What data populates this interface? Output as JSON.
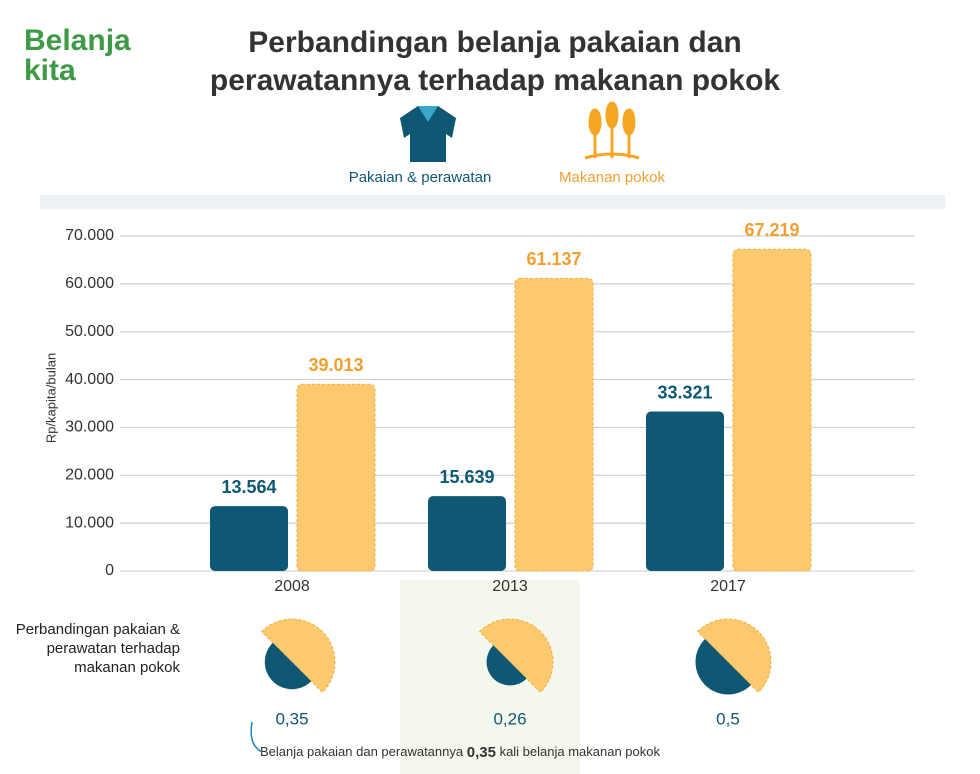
{
  "logo": "Belanja kita",
  "chart_data": {
    "type": "bar",
    "title": "Perbandingan belanja pakaian dan perawatannya terhadap makanan pokok",
    "y_label": "Rp/kapita/bulan",
    "categories": [
      "2008",
      "2013",
      "2017"
    ],
    "series": [
      {
        "name": "Pakaian & perawatan",
        "color": "#0e5874",
        "label_color": "#0e5874",
        "values": [
          13564,
          15639,
          33321
        ],
        "value_labels": [
          "13.564",
          "15.639",
          "33.321"
        ]
      },
      {
        "name": "Makanan pokok",
        "color": "#fcc96e",
        "label_color": "#f0a030",
        "values": [
          39013,
          61137,
          67219
        ],
        "value_labels": [
          "39.013",
          "61.137",
          "67.219"
        ]
      }
    ],
    "ylim": [
      0,
      70000
    ],
    "yticks": [
      0,
      {
        "value": 10000,
        "label": "10.000"
      },
      {
        "value": 20000,
        "label": "20.000"
      },
      {
        "value": 30000,
        "label": "30.000"
      },
      {
        "value": 40000,
        "label": "40.000"
      },
      {
        "value": 50000,
        "label": "50.000"
      },
      {
        "value": 60000,
        "label": "60.000"
      },
      {
        "value": 70000,
        "label": "70.000"
      }
    ],
    "grid": true,
    "ratio_title": "Perbandingan pakaian & perawatan terhadap makanan pokok",
    "ratios": [
      0.35,
      0.26,
      0.5
    ],
    "ratio_labels": [
      "0,35",
      "0,26",
      "0,5"
    ],
    "note": {
      "before": "Belanja pakaian dan perawatannya",
      "highlight": "0,35",
      "after": "kali belanja makanan pokok"
    }
  }
}
